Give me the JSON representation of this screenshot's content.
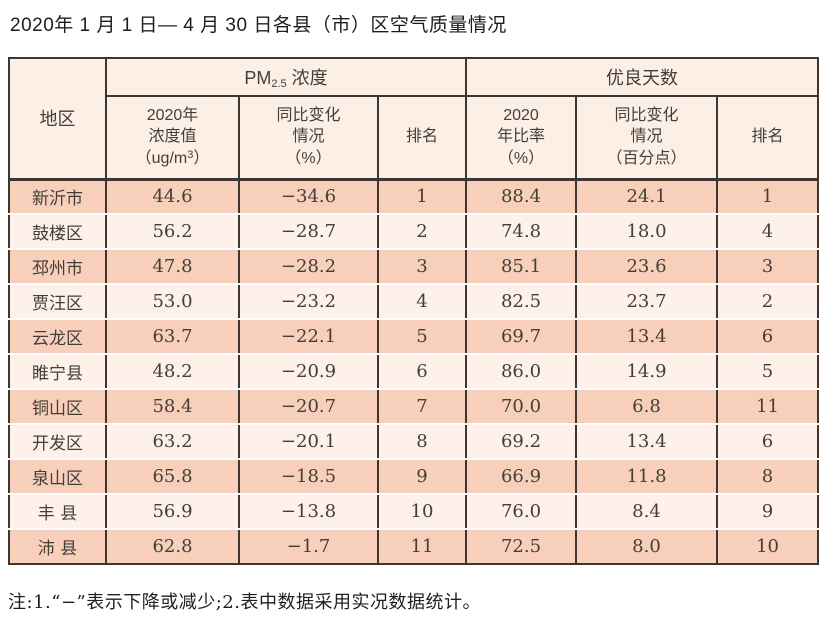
{
  "title": "2020年 1 月 1 日— 4 月 30 日各县（市）区空气质量情况",
  "colors": {
    "dark": "#3e3731",
    "row_salmon": "#f8cfba",
    "row_light": "#fdf1e9",
    "header_bg": "#fcefe6",
    "text": "#443e39"
  },
  "table": {
    "header": {
      "region": "地区",
      "pm_group": {
        "pre": "PM",
        "sub": "2.5",
        "post": " 浓度"
      },
      "good_group": "优良天数",
      "pm_value": {
        "l1": "2020年",
        "l2": "浓度值",
        "l3a": "（ug/m",
        "l3sup": "3",
        "l3b": "）"
      },
      "pm_change": "同比变化\n情况\n（%）",
      "rank1": "排名",
      "good_rate": "2020\n年比率\n（%）",
      "good_change": "同比变化\n情况\n（百分点）",
      "rank2": "排名"
    },
    "rows": [
      {
        "region": "新沂市",
        "pm": "44.6",
        "pm_chg": "−34.6",
        "pm_rank": "1",
        "rate": "88.4",
        "rate_chg": "24.1",
        "rate_rank": "1"
      },
      {
        "region": "鼓楼区",
        "pm": "56.2",
        "pm_chg": "−28.7",
        "pm_rank": "2",
        "rate": "74.8",
        "rate_chg": "18.0",
        "rate_rank": "4"
      },
      {
        "region": "邳州市",
        "pm": "47.8",
        "pm_chg": "−28.2",
        "pm_rank": "3",
        "rate": "85.1",
        "rate_chg": "23.6",
        "rate_rank": "3"
      },
      {
        "region": "贾汪区",
        "pm": "53.0",
        "pm_chg": "−23.2",
        "pm_rank": "4",
        "rate": "82.5",
        "rate_chg": "23.7",
        "rate_rank": "2"
      },
      {
        "region": "云龙区",
        "pm": "63.7",
        "pm_chg": "−22.1",
        "pm_rank": "5",
        "rate": "69.7",
        "rate_chg": "13.4",
        "rate_rank": "6"
      },
      {
        "region": "睢宁县",
        "pm": "48.2",
        "pm_chg": "−20.9",
        "pm_rank": "6",
        "rate": "86.0",
        "rate_chg": "14.9",
        "rate_rank": "5"
      },
      {
        "region": "铜山区",
        "pm": "58.4",
        "pm_chg": "−20.7",
        "pm_rank": "7",
        "rate": "70.0",
        "rate_chg": "6.8",
        "rate_rank": "11"
      },
      {
        "region": "开发区",
        "pm": "63.2",
        "pm_chg": "−20.1",
        "pm_rank": "8",
        "rate": "69.2",
        "rate_chg": "13.4",
        "rate_rank": "6"
      },
      {
        "region": "泉山区",
        "pm": "65.8",
        "pm_chg": "−18.5",
        "pm_rank": "9",
        "rate": "66.9",
        "rate_chg": "11.8",
        "rate_rank": "8"
      },
      {
        "region": "丰 县",
        "pm": "56.9",
        "pm_chg": "−13.8",
        "pm_rank": "10",
        "rate": "76.0",
        "rate_chg": "8.4",
        "rate_rank": "9"
      },
      {
        "region": "沛 县",
        "pm": "62.8",
        "pm_chg": "−1.7",
        "pm_rank": "11",
        "rate": "72.5",
        "rate_chg": "8.0",
        "rate_rank": "10"
      }
    ]
  },
  "note": "注:1.“−”表示下降或减少;2.表中数据采用实况数据统计。"
}
